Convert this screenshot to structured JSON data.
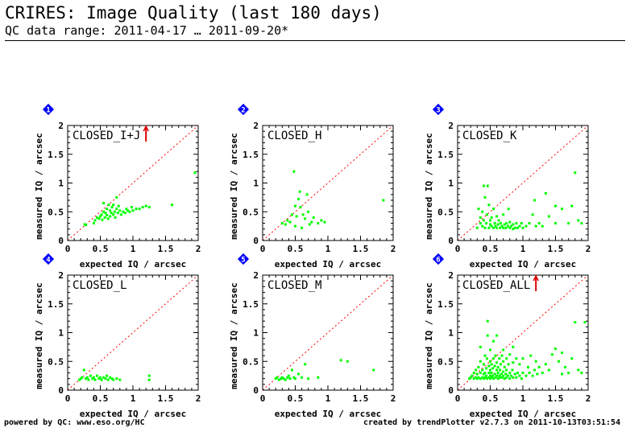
{
  "header": {
    "title": "CRIRES: Image Quality (last 180 days)",
    "subtitle": "QC data range: 2011-04-17 … 2011-09-20*"
  },
  "footer": {
    "left": "powered by QC: www.eso.org/HC",
    "right": "created by trendPlotter v2.7.3 on 2011-10-13T03:51:54"
  },
  "colors": {
    "points": "#00ff00",
    "diagonal": "#ff0000",
    "outlier_arrow": "#dd0000",
    "badge": "#0000ff"
  },
  "chart_data": [
    {
      "type": "scatter",
      "badge": "1",
      "title": "CLOSED_I+J",
      "xlabel": "expected IQ / arcsec",
      "ylabel": "measured IQ / arcsec",
      "xlim": [
        0,
        2
      ],
      "ylim": [
        0,
        2
      ],
      "xticks": [
        "0",
        "0.5",
        "1",
        "1.5",
        "2"
      ],
      "yticks": [
        "0",
        "0.5",
        "1",
        "1.5",
        "2"
      ],
      "reference_line": "y = x",
      "outliers_above_range": [
        {
          "x": 1.2
        }
      ],
      "points": [
        [
          0.26,
          0.28
        ],
        [
          0.28,
          0.27
        ],
        [
          0.4,
          0.3
        ],
        [
          0.42,
          0.35
        ],
        [
          0.45,
          0.4
        ],
        [
          0.48,
          0.38
        ],
        [
          0.5,
          0.42
        ],
        [
          0.52,
          0.45
        ],
        [
          0.53,
          0.36
        ],
        [
          0.55,
          0.5
        ],
        [
          0.55,
          0.65
        ],
        [
          0.57,
          0.4
        ],
        [
          0.58,
          0.48
        ],
        [
          0.6,
          0.44
        ],
        [
          0.6,
          0.55
        ],
        [
          0.62,
          0.38
        ],
        [
          0.63,
          0.62
        ],
        [
          0.65,
          0.42
        ],
        [
          0.65,
          0.52
        ],
        [
          0.67,
          0.48
        ],
        [
          0.68,
          0.58
        ],
        [
          0.7,
          0.45
        ],
        [
          0.7,
          0.62
        ],
        [
          0.72,
          0.5
        ],
        [
          0.73,
          0.4
        ],
        [
          0.75,
          0.55
        ],
        [
          0.75,
          0.75
        ],
        [
          0.77,
          0.48
        ],
        [
          0.78,
          0.6
        ],
        [
          0.8,
          0.52
        ],
        [
          0.82,
          0.45
        ],
        [
          0.85,
          0.5
        ],
        [
          0.88,
          0.48
        ],
        [
          0.9,
          0.55
        ],
        [
          0.92,
          0.52
        ],
        [
          0.95,
          0.5
        ],
        [
          0.98,
          0.58
        ],
        [
          1.0,
          0.52
        ],
        [
          1.05,
          0.55
        ],
        [
          1.1,
          0.55
        ],
        [
          1.15,
          0.58
        ],
        [
          1.2,
          0.6
        ],
        [
          1.25,
          0.58
        ],
        [
          1.6,
          0.62
        ],
        [
          1.95,
          1.18
        ]
      ]
    },
    {
      "type": "scatter",
      "badge": "2",
      "title": "CLOSED_H",
      "xlabel": "expected IQ / arcsec",
      "ylabel": "measured IQ / arcsec",
      "xlim": [
        0,
        2
      ],
      "ylim": [
        0,
        2
      ],
      "xticks": [
        "0",
        "0.5",
        "1",
        "1.5",
        "2"
      ],
      "yticks": [
        "0",
        "0.5",
        "1",
        "1.5",
        "2"
      ],
      "reference_line": "y = x",
      "outliers_above_range": [],
      "points": [
        [
          0.3,
          0.3
        ],
        [
          0.35,
          0.28
        ],
        [
          0.38,
          0.35
        ],
        [
          0.42,
          0.32
        ],
        [
          0.45,
          0.45
        ],
        [
          0.48,
          1.2
        ],
        [
          0.5,
          0.6
        ],
        [
          0.5,
          0.25
        ],
        [
          0.52,
          0.42
        ],
        [
          0.55,
          0.72
        ],
        [
          0.57,
          0.85
        ],
        [
          0.58,
          0.58
        ],
        [
          0.6,
          0.22
        ],
        [
          0.62,
          0.45
        ],
        [
          0.65,
          0.38
        ],
        [
          0.68,
          0.8
        ],
        [
          0.7,
          0.5
        ],
        [
          0.72,
          0.28
        ],
        [
          0.75,
          0.32
        ],
        [
          0.78,
          0.4
        ],
        [
          0.85,
          0.3
        ],
        [
          0.9,
          0.35
        ],
        [
          0.95,
          0.32
        ],
        [
          1.85,
          0.7
        ]
      ]
    },
    {
      "type": "scatter",
      "badge": "3",
      "title": "CLOSED_K",
      "xlabel": "expected IQ / arcsec",
      "ylabel": "measured IQ / arcsec",
      "xlim": [
        0,
        2
      ],
      "ylim": [
        0,
        2
      ],
      "xticks": [
        "0",
        "0.5",
        "1",
        "1.5",
        "2"
      ],
      "yticks": [
        "0",
        "0.5",
        "1",
        "1.5",
        "2"
      ],
      "reference_line": "y = x",
      "outliers_above_range": [],
      "points": [
        [
          0.3,
          0.22
        ],
        [
          0.32,
          0.55
        ],
        [
          0.35,
          0.3
        ],
        [
          0.35,
          0.4
        ],
        [
          0.38,
          0.25
        ],
        [
          0.38,
          0.5
        ],
        [
          0.4,
          0.95
        ],
        [
          0.4,
          0.35
        ],
        [
          0.42,
          0.22
        ],
        [
          0.42,
          0.75
        ],
        [
          0.44,
          0.3
        ],
        [
          0.45,
          0.45
        ],
        [
          0.46,
          0.95
        ],
        [
          0.48,
          0.22
        ],
        [
          0.48,
          0.62
        ],
        [
          0.5,
          0.28
        ],
        [
          0.5,
          0.35
        ],
        [
          0.52,
          0.25
        ],
        [
          0.52,
          0.4
        ],
        [
          0.55,
          0.22
        ],
        [
          0.55,
          0.55
        ],
        [
          0.57,
          0.3
        ],
        [
          0.58,
          0.25
        ],
        [
          0.6,
          0.22
        ],
        [
          0.6,
          0.42
        ],
        [
          0.62,
          0.28
        ],
        [
          0.63,
          0.35
        ],
        [
          0.65,
          0.22
        ],
        [
          0.66,
          0.3
        ],
        [
          0.68,
          0.25
        ],
        [
          0.7,
          0.22
        ],
        [
          0.7,
          0.45
        ],
        [
          0.72,
          0.28
        ],
        [
          0.74,
          0.22
        ],
        [
          0.75,
          0.3
        ],
        [
          0.77,
          0.25
        ],
        [
          0.78,
          0.55
        ],
        [
          0.8,
          0.22
        ],
        [
          0.8,
          0.32
        ],
        [
          0.82,
          0.25
        ],
        [
          0.85,
          0.2
        ],
        [
          0.85,
          0.28
        ],
        [
          0.88,
          0.22
        ],
        [
          0.9,
          0.3
        ],
        [
          0.92,
          0.22
        ],
        [
          0.95,
          0.25
        ],
        [
          0.98,
          0.3
        ],
        [
          1.0,
          0.22
        ],
        [
          1.05,
          0.25
        ],
        [
          1.1,
          0.3
        ],
        [
          1.15,
          0.45
        ],
        [
          1.18,
          0.7
        ],
        [
          1.2,
          0.25
        ],
        [
          1.25,
          0.3
        ],
        [
          1.3,
          0.25
        ],
        [
          1.4,
          0.42
        ],
        [
          1.5,
          0.3
        ],
        [
          1.6,
          0.55
        ],
        [
          1.7,
          0.3
        ],
        [
          1.75,
          0.6
        ],
        [
          1.8,
          1.18
        ],
        [
          1.85,
          0.35
        ],
        [
          1.9,
          0.3
        ],
        [
          1.35,
          0.82
        ],
        [
          1.5,
          0.6
        ]
      ]
    },
    {
      "type": "scatter",
      "badge": "4",
      "title": "CLOSED_L",
      "xlabel": "expected IQ / arcsec",
      "ylabel": "measured IQ / arcsec",
      "xlim": [
        0,
        2
      ],
      "ylim": [
        0,
        2
      ],
      "xticks": [
        "0",
        "0.5",
        "1",
        "1.5",
        "2"
      ],
      "yticks": [
        "0",
        "0.5",
        "1",
        "1.5",
        "2"
      ],
      "reference_line": "y = x",
      "outliers_above_range": [],
      "points": [
        [
          0.18,
          0.18
        ],
        [
          0.2,
          0.2
        ],
        [
          0.22,
          0.22
        ],
        [
          0.25,
          0.35
        ],
        [
          0.28,
          0.2
        ],
        [
          0.3,
          0.22
        ],
        [
          0.32,
          0.18
        ],
        [
          0.35,
          0.25
        ],
        [
          0.38,
          0.2
        ],
        [
          0.4,
          0.22
        ],
        [
          0.42,
          0.18
        ],
        [
          0.45,
          0.25
        ],
        [
          0.48,
          0.2
        ],
        [
          0.5,
          0.22
        ],
        [
          0.52,
          0.18
        ],
        [
          0.55,
          0.22
        ],
        [
          0.58,
          0.2
        ],
        [
          0.6,
          0.25
        ],
        [
          0.62,
          0.18
        ],
        [
          0.65,
          0.22
        ],
        [
          0.68,
          0.2
        ],
        [
          0.7,
          0.18
        ],
        [
          0.75,
          0.2
        ],
        [
          0.8,
          0.18
        ],
        [
          1.25,
          0.18
        ],
        [
          1.25,
          0.25
        ]
      ]
    },
    {
      "type": "scatter",
      "badge": "5",
      "title": "CLOSED_M",
      "xlabel": "expected IQ / arcsec",
      "ylabel": "measured IQ / arcsec",
      "xlim": [
        0,
        2
      ],
      "ylim": [
        0,
        2
      ],
      "xticks": [
        "0",
        "0.5",
        "1",
        "1.5",
        "2"
      ],
      "yticks": [
        "0",
        "0.5",
        "1",
        "1.5",
        "2"
      ],
      "reference_line": "y = x",
      "outliers_above_range": [],
      "points": [
        [
          0.2,
          0.2
        ],
        [
          0.22,
          0.22
        ],
        [
          0.25,
          0.18
        ],
        [
          0.28,
          0.2
        ],
        [
          0.3,
          0.22
        ],
        [
          0.32,
          0.2
        ],
        [
          0.35,
          0.18
        ],
        [
          0.38,
          0.22
        ],
        [
          0.4,
          0.25
        ],
        [
          0.42,
          0.2
        ],
        [
          0.45,
          0.35
        ],
        [
          0.48,
          0.22
        ],
        [
          0.5,
          0.2
        ],
        [
          0.55,
          0.28
        ],
        [
          0.6,
          0.22
        ],
        [
          0.65,
          0.45
        ],
        [
          0.7,
          0.2
        ],
        [
          0.85,
          0.22
        ],
        [
          1.2,
          0.52
        ],
        [
          1.3,
          0.5
        ],
        [
          1.7,
          0.35
        ]
      ]
    },
    {
      "type": "scatter",
      "badge": "6",
      "title": "CLOSED_ALL",
      "xlabel": "expected IQ / arcsec",
      "ylabel": "measured IQ / arcsec",
      "xlim": [
        0,
        2
      ],
      "ylim": [
        0,
        2
      ],
      "xticks": [
        "0",
        "0.5",
        "1",
        "1.5",
        "2"
      ],
      "yticks": [
        "0",
        "0.5",
        "1",
        "1.5",
        "2"
      ],
      "reference_line": "y = x",
      "outliers_above_range": [
        {
          "x": 1.2
        }
      ],
      "points": [
        [
          0.18,
          0.2
        ],
        [
          0.2,
          0.22
        ],
        [
          0.22,
          0.25
        ],
        [
          0.25,
          0.2
        ],
        [
          0.25,
          0.3
        ],
        [
          0.28,
          0.22
        ],
        [
          0.28,
          0.35
        ],
        [
          0.3,
          0.2
        ],
        [
          0.3,
          0.28
        ],
        [
          0.32,
          0.22
        ],
        [
          0.32,
          0.4
        ],
        [
          0.35,
          0.2
        ],
        [
          0.35,
          0.3
        ],
        [
          0.35,
          0.5
        ],
        [
          0.38,
          0.22
        ],
        [
          0.38,
          0.35
        ],
        [
          0.4,
          0.2
        ],
        [
          0.4,
          0.28
        ],
        [
          0.4,
          0.45
        ],
        [
          0.42,
          0.22
        ],
        [
          0.42,
          0.3
        ],
        [
          0.42,
          0.6
        ],
        [
          0.44,
          0.25
        ],
        [
          0.44,
          0.38
        ],
        [
          0.45,
          0.2
        ],
        [
          0.45,
          0.55
        ],
        [
          0.46,
          0.95
        ],
        [
          0.46,
          1.2
        ],
        [
          0.48,
          0.22
        ],
        [
          0.48,
          0.3
        ],
        [
          0.48,
          0.42
        ],
        [
          0.5,
          0.2
        ],
        [
          0.5,
          0.25
        ],
        [
          0.5,
          0.35
        ],
        [
          0.5,
          0.5
        ],
        [
          0.5,
          0.7
        ],
        [
          0.52,
          0.22
        ],
        [
          0.52,
          0.3
        ],
        [
          0.52,
          0.45
        ],
        [
          0.54,
          0.25
        ],
        [
          0.54,
          0.38
        ],
        [
          0.55,
          0.2
        ],
        [
          0.55,
          0.55
        ],
        [
          0.55,
          0.85
        ],
        [
          0.57,
          0.28
        ],
        [
          0.57,
          0.42
        ],
        [
          0.58,
          0.22
        ],
        [
          0.58,
          0.6
        ],
        [
          0.6,
          0.25
        ],
        [
          0.6,
          0.35
        ],
        [
          0.6,
          0.48
        ],
        [
          0.62,
          0.2
        ],
        [
          0.62,
          0.3
        ],
        [
          0.62,
          0.4
        ],
        [
          0.64,
          0.25
        ],
        [
          0.64,
          0.55
        ],
        [
          0.65,
          0.22
        ],
        [
          0.65,
          0.35
        ],
        [
          0.66,
          0.45
        ],
        [
          0.67,
          0.28
        ],
        [
          0.68,
          0.22
        ],
        [
          0.68,
          0.6
        ],
        [
          0.7,
          0.25
        ],
        [
          0.7,
          0.32
        ],
        [
          0.7,
          0.5
        ],
        [
          0.72,
          0.2
        ],
        [
          0.72,
          0.4
        ],
        [
          0.74,
          0.28
        ],
        [
          0.75,
          0.22
        ],
        [
          0.75,
          0.35
        ],
        [
          0.75,
          0.55
        ],
        [
          0.77,
          0.25
        ],
        [
          0.78,
          0.45
        ],
        [
          0.8,
          0.2
        ],
        [
          0.8,
          0.3
        ],
        [
          0.8,
          0.62
        ],
        [
          0.82,
          0.25
        ],
        [
          0.84,
          0.35
        ],
        [
          0.85,
          0.22
        ],
        [
          0.85,
          0.48
        ],
        [
          0.88,
          0.28
        ],
        [
          0.9,
          0.22
        ],
        [
          0.9,
          0.55
        ],
        [
          0.92,
          0.3
        ],
        [
          0.95,
          0.25
        ],
        [
          0.95,
          0.45
        ],
        [
          0.98,
          0.2
        ],
        [
          1.0,
          0.3
        ],
        [
          1.0,
          0.55
        ],
        [
          1.05,
          0.25
        ],
        [
          1.08,
          0.4
        ],
        [
          1.1,
          0.3
        ],
        [
          1.12,
          0.6
        ],
        [
          1.15,
          0.25
        ],
        [
          1.18,
          0.35
        ],
        [
          1.2,
          0.5
        ],
        [
          1.22,
          0.28
        ],
        [
          1.25,
          0.4
        ],
        [
          1.3,
          0.3
        ],
        [
          1.35,
          0.45
        ],
        [
          1.4,
          0.35
        ],
        [
          1.5,
          0.72
        ],
        [
          1.55,
          0.5
        ],
        [
          1.6,
          0.65
        ],
        [
          1.65,
          0.4
        ],
        [
          1.7,
          0.3
        ],
        [
          1.75,
          0.55
        ],
        [
          1.8,
          1.18
        ],
        [
          1.85,
          0.35
        ],
        [
          1.9,
          0.3
        ],
        [
          1.95,
          1.18
        ],
        [
          0.35,
          0.75
        ],
        [
          0.6,
          0.95
        ],
        [
          0.7,
          0.7
        ],
        [
          0.85,
          0.75
        ],
        [
          1.45,
          0.62
        ],
        [
          1.6,
          0.28
        ]
      ]
    }
  ]
}
